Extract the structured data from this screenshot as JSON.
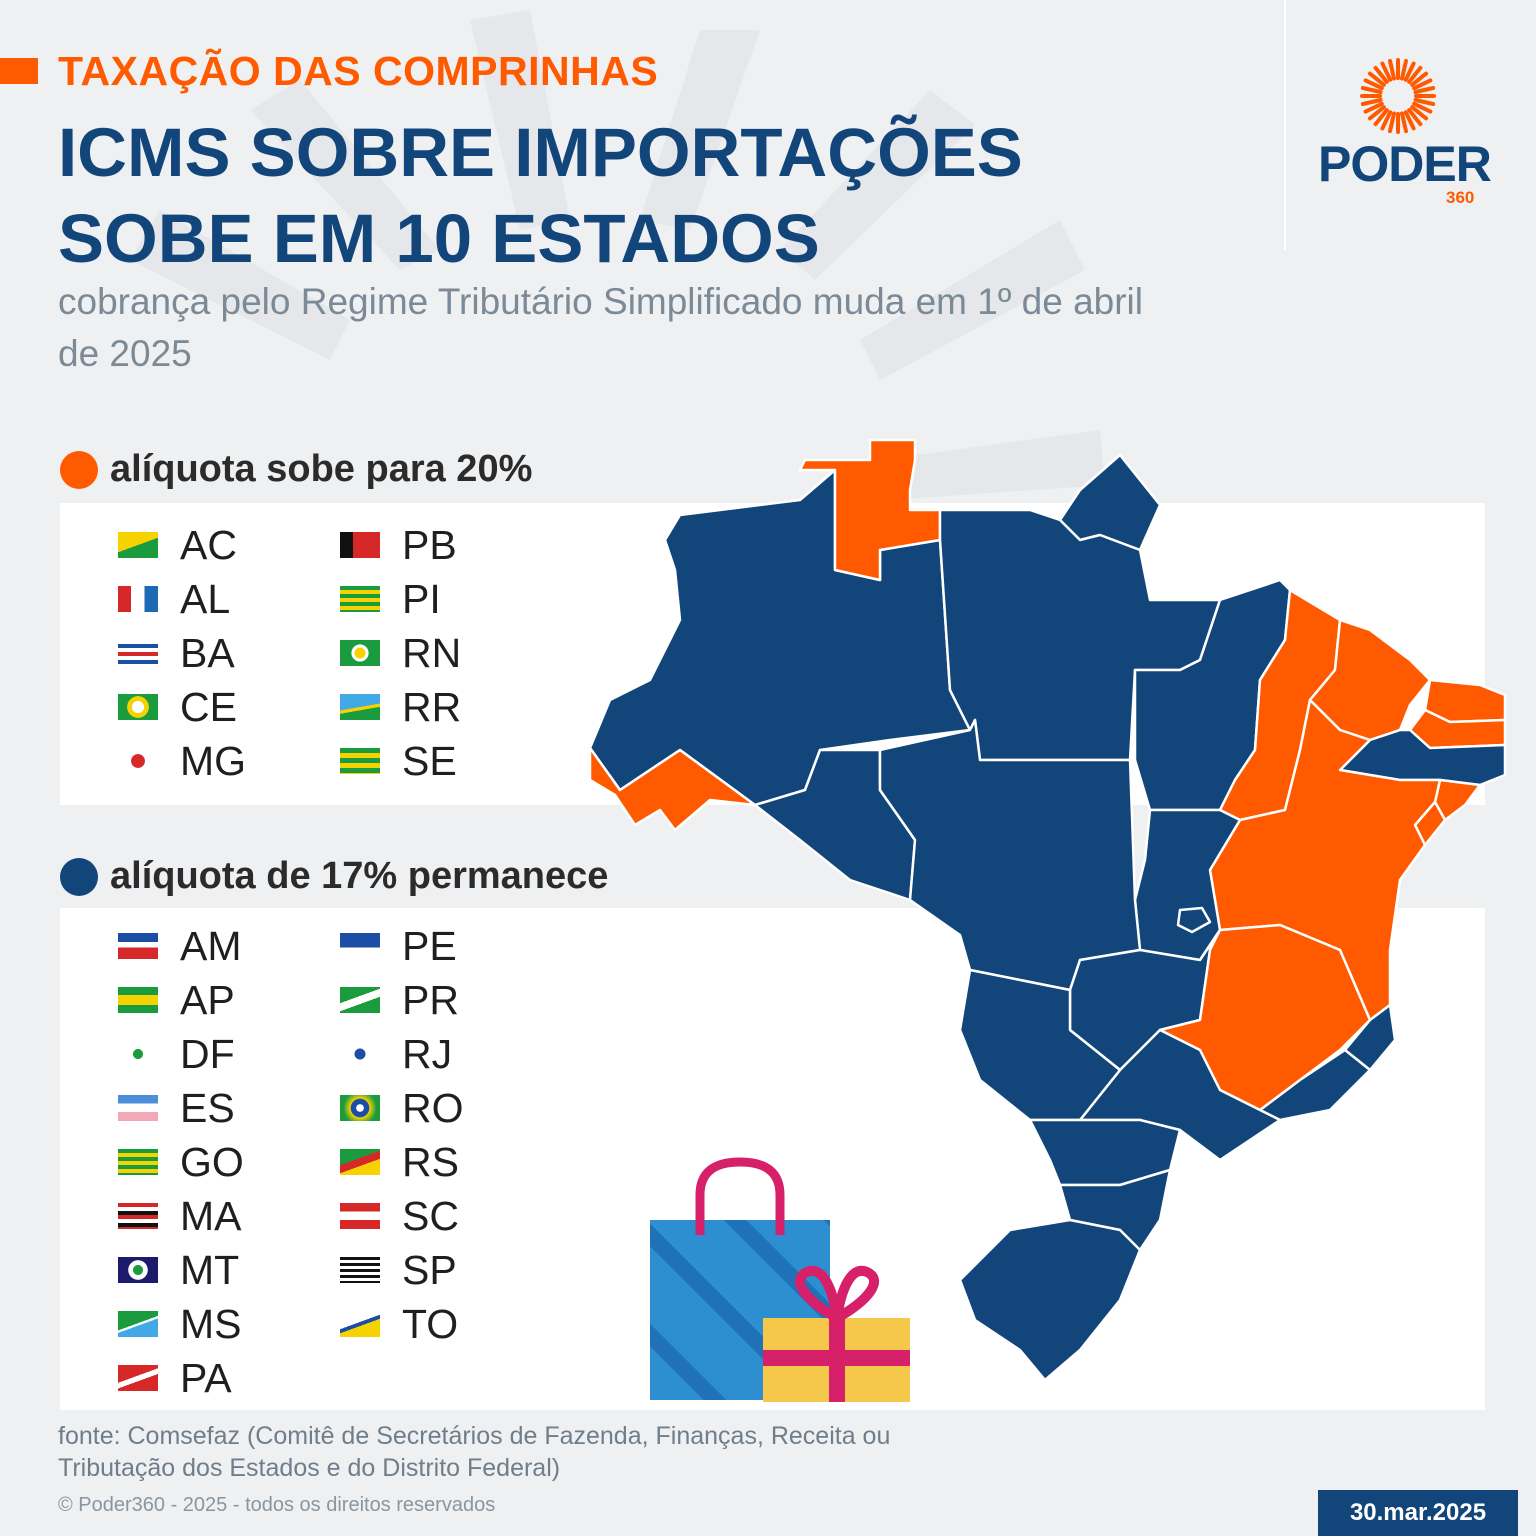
{
  "kicker": "TAXAÇÃO DAS COMPRINHAS",
  "headline": "ICMS SOBRE IMPORTAÇÕES SOBE EM 10 ESTADOS",
  "subtitle": "cobrança pelo Regime Tributário Simplificado muda em 1º de abril de 2025",
  "logo": {
    "name": "PODER",
    "number": "360"
  },
  "colors": {
    "increase": "#ff5a00",
    "maintained": "#12457a",
    "background": "#eff0f2"
  },
  "groups": [
    {
      "label": "alíquota sobe para 20%",
      "color": "#ff5a00",
      "states": [
        "AC",
        "AL",
        "BA",
        "CE",
        "MG",
        "PB",
        "PI",
        "RN",
        "RR",
        "SE"
      ]
    },
    {
      "label": "alíquota de 17% permanece",
      "color": "#12457a",
      "states": [
        "AM",
        "AP",
        "DF",
        "ES",
        "GO",
        "MA",
        "MT",
        "MS",
        "PA",
        "PE",
        "PR",
        "RJ",
        "RO",
        "RS",
        "SC",
        "SP",
        "TO"
      ]
    }
  ],
  "map_states": [
    {
      "code": "RR",
      "rate": "20%"
    },
    {
      "code": "AC",
      "rate": "20%"
    },
    {
      "code": "AM",
      "rate": "17%"
    },
    {
      "code": "AP",
      "rate": "17%"
    },
    {
      "code": "PA",
      "rate": "17%"
    },
    {
      "code": "MA",
      "rate": "17%"
    },
    {
      "code": "PI",
      "rate": "20%"
    },
    {
      "code": "CE",
      "rate": "20%"
    },
    {
      "code": "RN",
      "rate": "20%"
    },
    {
      "code": "PB",
      "rate": "20%"
    },
    {
      "code": "PE",
      "rate": "17%"
    },
    {
      "code": "AL",
      "rate": "20%"
    },
    {
      "code": "SE",
      "rate": "20%"
    },
    {
      "code": "BA",
      "rate": "20%"
    },
    {
      "code": "TO",
      "rate": "17%"
    },
    {
      "code": "RO",
      "rate": "17%"
    },
    {
      "code": "MT",
      "rate": "17%"
    },
    {
      "code": "GO",
      "rate": "17%"
    },
    {
      "code": "DF",
      "rate": "17%"
    },
    {
      "code": "MG",
      "rate": "20%"
    },
    {
      "code": "ES",
      "rate": "17%"
    },
    {
      "code": "RJ",
      "rate": "17%"
    },
    {
      "code": "SP",
      "rate": "17%"
    },
    {
      "code": "MS",
      "rate": "17%"
    },
    {
      "code": "PR",
      "rate": "17%"
    },
    {
      "code": "SC",
      "rate": "17%"
    },
    {
      "code": "RS",
      "rate": "17%"
    }
  ],
  "source": "fonte: Comsefaz (Comitê de Secretários de Fazenda, Finanças, Receita ou Tributação dos Estados e do Distrito Federal)",
  "copyright": "© Poder360 - 2025 - todos os direitos reservados",
  "date": "30.mar.2025"
}
